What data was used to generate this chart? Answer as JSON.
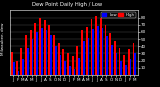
{
  "title": "Dew Point Daily High / Low",
  "ylabel_left": "Milwaukee, dew",
  "background_color": "#000000",
  "plot_bg_color": "#000000",
  "high_color": "#ff0000",
  "low_color": "#0000ff",
  "grid_color": "#555555",
  "text_color": "#ffffff",
  "bar_width": 0.38,
  "categories": [
    "J",
    "F",
    "M",
    "A",
    "M",
    "J",
    "J",
    "A",
    "S",
    "O",
    "N",
    "D",
    "J",
    "F",
    "M",
    "A",
    "M",
    "J",
    "J",
    "A",
    "S",
    "O",
    "N",
    "D",
    "J",
    "F",
    "M"
  ],
  "high_values": [
    32,
    20,
    38,
    55,
    63,
    72,
    79,
    77,
    70,
    55,
    44,
    36,
    30,
    26,
    40,
    63,
    67,
    78,
    82,
    80,
    70,
    58,
    47,
    38,
    28,
    36,
    44
  ],
  "low_values": [
    18,
    5,
    22,
    37,
    50,
    60,
    65,
    63,
    55,
    40,
    28,
    20,
    12,
    8,
    24,
    47,
    52,
    64,
    68,
    65,
    54,
    41,
    30,
    20,
    14,
    22,
    30
  ],
  "ylim": [
    0,
    90
  ],
  "ytick_vals": [
    10,
    20,
    30,
    40,
    50,
    60,
    70,
    80
  ],
  "legend_high": "High",
  "legend_low": "Low",
  "dpi": 100,
  "figsize": [
    1.6,
    0.87
  ]
}
